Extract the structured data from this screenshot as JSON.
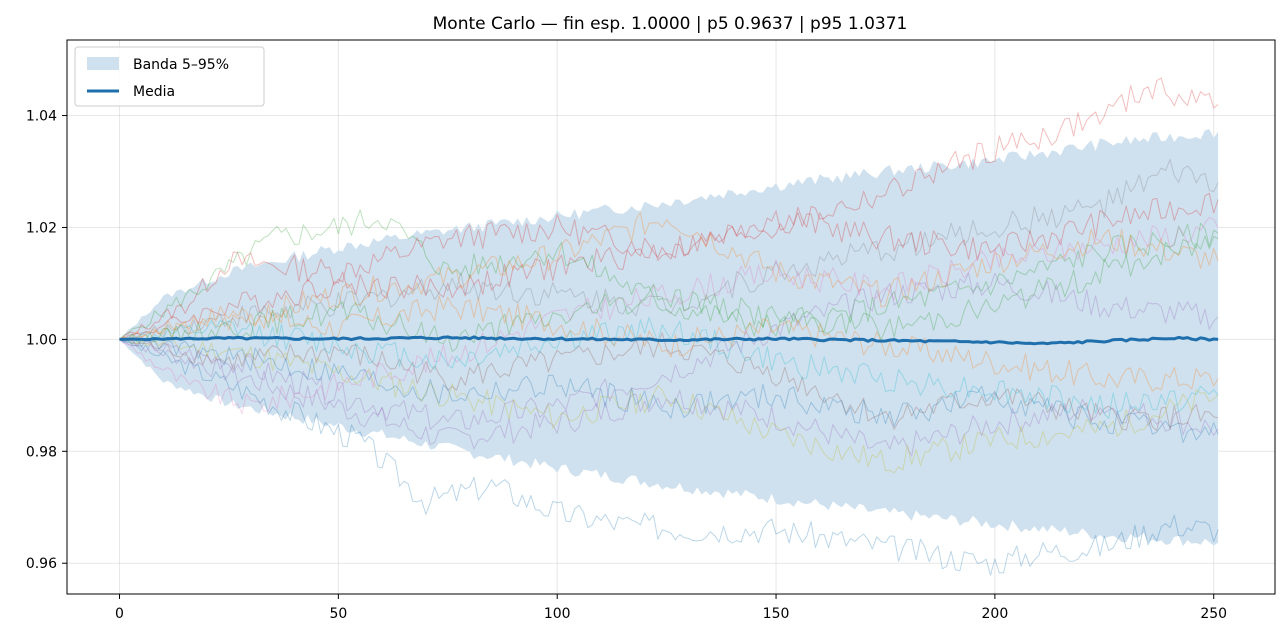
{
  "chart_data": {
    "type": "line",
    "title": "Monte Carlo — fin esp. 1.0000 | p5 0.9637 | p95 1.0371",
    "xlabel": "",
    "ylabel": "",
    "xlim": [
      -12,
      264
    ],
    "ylim": [
      0.9545,
      1.0535
    ],
    "x_ticks": [
      0,
      50,
      100,
      150,
      200,
      250
    ],
    "y_ticks": [
      0.96,
      0.98,
      1.0,
      1.02,
      1.04
    ],
    "x_tick_labels": [
      "0",
      "50",
      "100",
      "150",
      "200",
      "250"
    ],
    "y_tick_labels": [
      "0.96",
      "0.98",
      "1.00",
      "1.02",
      "1.04"
    ],
    "grid": true,
    "legend": {
      "placement": "top-left",
      "entries": [
        {
          "label": "Banda 5–95%",
          "kind": "band",
          "color": "#cfe0ee"
        },
        {
          "label": "Media",
          "kind": "line",
          "color": "#1f6fad"
        }
      ]
    },
    "band": {
      "name": "Banda 5–95%",
      "color": "#cfe0ee",
      "x": [
        0,
        10,
        25,
        50,
        75,
        100,
        125,
        150,
        175,
        200,
        225,
        251
      ],
      "lower": [
        1.0,
        0.9925,
        0.9885,
        0.9845,
        0.9805,
        0.977,
        0.974,
        0.9715,
        0.969,
        0.967,
        0.965,
        0.9637
      ],
      "upper": [
        1.0,
        1.0075,
        1.012,
        1.0165,
        1.0195,
        1.022,
        1.0245,
        1.0275,
        1.03,
        1.032,
        1.035,
        1.0371
      ]
    },
    "mean": {
      "name": "Media",
      "color": "#1f6fad",
      "x": [
        0,
        25,
        50,
        75,
        100,
        125,
        150,
        175,
        190,
        200,
        210,
        225,
        240,
        251
      ],
      "y": [
        1.0,
        1.0002,
        1.0001,
        1.0003,
        1.0001,
        0.9999,
        1.0001,
        0.9998,
        0.9996,
        0.9995,
        0.9992,
        0.9997,
        1.0002,
        1.0
      ]
    },
    "paths": [
      {
        "color": "#1f77b4",
        "x": [
          0,
          25,
          45,
          55,
          70,
          85,
          100,
          115,
          130,
          150,
          175,
          190,
          200,
          210,
          225,
          240,
          251
        ],
        "y": [
          1.0,
          0.992,
          0.985,
          0.982,
          0.971,
          0.974,
          0.969,
          0.967,
          0.966,
          0.966,
          0.963,
          0.961,
          0.96,
          0.962,
          0.963,
          0.967,
          0.966
        ]
      },
      {
        "color": "#d62728",
        "x": [
          0,
          25,
          50,
          75,
          100,
          125,
          150,
          175,
          190,
          200,
          210,
          225,
          235,
          245,
          251
        ],
        "y": [
          1.0,
          1.006,
          1.01,
          1.009,
          1.013,
          1.016,
          1.02,
          1.026,
          1.031,
          1.034,
          1.036,
          1.04,
          1.045,
          1.043,
          1.042
        ]
      },
      {
        "color": "#2ca02c",
        "x": [
          0,
          20,
          35,
          50,
          60,
          75,
          100,
          125,
          150,
          175,
          200,
          225,
          251
        ],
        "y": [
          1.0,
          1.01,
          1.018,
          1.02,
          1.022,
          1.012,
          1.016,
          1.006,
          1.002,
          1.006,
          1.01,
          1.016,
          1.019
        ]
      },
      {
        "color": "#ff7f0e",
        "x": [
          0,
          25,
          50,
          75,
          100,
          125,
          150,
          175,
          200,
          225,
          251
        ],
        "y": [
          1.0,
          1.003,
          1.008,
          1.011,
          1.015,
          1.022,
          1.012,
          1.008,
          1.014,
          1.018,
          1.014
        ]
      },
      {
        "color": "#9467bd",
        "x": [
          0,
          25,
          50,
          75,
          100,
          125,
          150,
          175,
          200,
          225,
          251
        ],
        "y": [
          1.0,
          0.994,
          0.988,
          0.982,
          0.985,
          0.99,
          0.986,
          0.98,
          0.985,
          0.988,
          0.984
        ]
      },
      {
        "color": "#8c564b",
        "x": [
          0,
          25,
          50,
          75,
          100,
          125,
          150,
          175,
          200,
          225,
          251
        ],
        "y": [
          1.0,
          0.996,
          0.998,
          0.993,
          0.996,
          0.999,
          0.994,
          0.986,
          0.99,
          0.986,
          0.986
        ]
      },
      {
        "color": "#e377c2",
        "x": [
          0,
          15,
          30,
          50,
          75,
          100,
          125,
          150,
          175,
          200,
          225,
          251
        ],
        "y": [
          1.0,
          0.992,
          0.988,
          0.992,
          0.997,
          1.004,
          1.008,
          1.012,
          1.009,
          1.014,
          1.017,
          1.02
        ]
      },
      {
        "color": "#7f7f7f",
        "x": [
          0,
          25,
          50,
          75,
          100,
          125,
          150,
          175,
          200,
          225,
          240,
          251
        ],
        "y": [
          1.0,
          1.004,
          1.006,
          1.01,
          1.008,
          1.006,
          1.012,
          1.016,
          1.02,
          1.024,
          1.03,
          1.028
        ]
      },
      {
        "color": "#bcbd22",
        "x": [
          0,
          25,
          50,
          75,
          100,
          125,
          150,
          175,
          200,
          225,
          251
        ],
        "y": [
          1.0,
          0.998,
          0.994,
          0.99,
          0.986,
          0.99,
          0.983,
          0.978,
          0.982,
          0.984,
          0.99
        ]
      },
      {
        "color": "#17becf",
        "x": [
          0,
          25,
          50,
          75,
          100,
          125,
          150,
          175,
          200,
          225,
          251
        ],
        "y": [
          1.0,
          1.002,
          0.999,
          0.996,
          1.0,
          1.002,
          0.996,
          0.993,
          0.991,
          0.988,
          0.99
        ]
      },
      {
        "color": "#d62728",
        "x": [
          0,
          15,
          25,
          50,
          75,
          100,
          125,
          150,
          175,
          200,
          225,
          251
        ],
        "y": [
          1.0,
          1.006,
          1.014,
          1.012,
          1.018,
          1.02,
          1.016,
          1.022,
          1.018,
          1.016,
          1.021,
          1.025
        ]
      },
      {
        "color": "#9467bd",
        "x": [
          0,
          25,
          50,
          75,
          100,
          125,
          150,
          175,
          200,
          225,
          251
        ],
        "y": [
          1.0,
          0.996,
          0.99,
          0.985,
          0.988,
          0.994,
          1.002,
          1.008,
          1.01,
          1.006,
          1.004
        ]
      },
      {
        "color": "#2ca02c",
        "x": [
          0,
          25,
          50,
          75,
          100,
          125,
          150,
          175,
          200,
          225,
          251
        ],
        "y": [
          1.0,
          1.002,
          1.005,
          1.0,
          1.004,
          1.008,
          1.004,
          1.002,
          1.006,
          1.012,
          1.018
        ]
      },
      {
        "color": "#1f77b4",
        "x": [
          0,
          25,
          50,
          75,
          100,
          125,
          150,
          175,
          200,
          225,
          251
        ],
        "y": [
          1.0,
          0.997,
          0.994,
          0.99,
          0.992,
          0.988,
          0.99,
          0.986,
          0.99,
          0.985,
          0.983
        ]
      },
      {
        "color": "#ff7f0e",
        "x": [
          0,
          25,
          50,
          75,
          100,
          125,
          150,
          175,
          200,
          225,
          251
        ],
        "y": [
          1.0,
          1.005,
          1.002,
          1.006,
          1.003,
          0.999,
          1.002,
          0.999,
          0.996,
          0.993,
          0.993
        ]
      }
    ]
  }
}
